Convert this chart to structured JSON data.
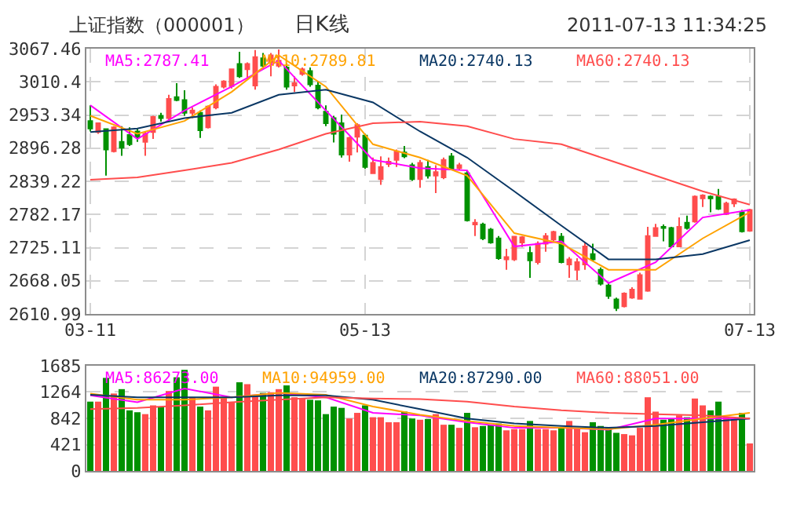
{
  "chart_data": [
    {
      "type": "candlestick",
      "title": "日K线",
      "annotations": [
        "上证指数（000001）",
        "2011-07-13 11:34:25"
      ],
      "categories": [
        "03-11",
        null,
        null,
        null,
        null,
        null,
        null,
        null,
        null,
        null,
        null,
        null,
        null,
        null,
        null,
        null,
        null,
        null,
        null,
        null,
        null,
        null,
        null,
        null,
        null,
        null,
        null,
        null,
        null,
        null,
        null,
        null,
        null,
        null,
        null,
        "05-13",
        null,
        null,
        null,
        null,
        null,
        null,
        null,
        null,
        null,
        null,
        null,
        null,
        null,
        null,
        null,
        null,
        null,
        null,
        null,
        null,
        null,
        null,
        null,
        null,
        null,
        null,
        null,
        null,
        null,
        null,
        null,
        null,
        null,
        null,
        null,
        null,
        null,
        null,
        null,
        null,
        null,
        null,
        null,
        null,
        null,
        null,
        null,
        null,
        "07-13"
      ],
      "ohlc": [
        [
          2943,
          2970,
          2925,
          2930
        ],
        [
          2924,
          2939,
          2921,
          2939
        ],
        [
          2929,
          2930,
          2849,
          2894
        ],
        [
          2891,
          2934,
          2889,
          2932
        ],
        [
          2907,
          2934,
          2883,
          2897
        ],
        [
          2919,
          2932,
          2900,
          2903
        ],
        [
          2925,
          2930,
          2907,
          2916
        ],
        [
          2907,
          2925,
          2883,
          2921
        ],
        [
          2924,
          2952,
          2912,
          2950
        ],
        [
          2952,
          2957,
          2942,
          2948
        ],
        [
          2948,
          2988,
          2943,
          2981
        ],
        [
          2984,
          3008,
          2977,
          2979
        ],
        [
          2979,
          2996,
          2952,
          2957
        ],
        [
          2957,
          2966,
          2948,
          2961
        ],
        [
          2957,
          2961,
          2914,
          2927
        ],
        [
          2932,
          2970,
          2930,
          2968
        ],
        [
          2966,
          3006,
          2963,
          3002
        ],
        [
          3002,
          3013,
          2999,
          3011
        ],
        [
          3003,
          3033,
          2999,
          3032
        ],
        [
          3041,
          3062,
          3017,
          3020
        ],
        [
          3032,
          3044,
          3015,
          3041
        ],
        [
          3004,
          3065,
          2997,
          3053
        ],
        [
          3051,
          3060,
          3033,
          3038
        ],
        [
          3044,
          3060,
          3020,
          3056
        ],
        [
          3038,
          3066,
          3035,
          3047
        ],
        [
          3035,
          3042,
          2997,
          3002
        ],
        [
          3004,
          3020,
          2993,
          3008
        ],
        [
          3024,
          3035,
          3021,
          3032
        ],
        [
          3029,
          3035,
          3002,
          3006
        ],
        [
          3004,
          3011,
          2963,
          2966
        ],
        [
          2959,
          2970,
          2934,
          2939
        ],
        [
          2948,
          2952,
          2906,
          2921
        ],
        [
          2939,
          2954,
          2880,
          2885
        ],
        [
          2885,
          2916,
          2873,
          2914
        ],
        [
          2916,
          2939,
          2889,
          2936
        ],
        [
          2918,
          2921,
          2861,
          2864
        ],
        [
          2853,
          2880,
          2852,
          2871
        ],
        [
          2843,
          2882,
          2833,
          2864
        ],
        [
          2869,
          2880,
          2864,
          2873
        ],
        [
          2876,
          2894,
          2864,
          2891
        ],
        [
          2889,
          2900,
          2879,
          2882
        ],
        [
          2867,
          2871,
          2840,
          2843
        ],
        [
          2843,
          2876,
          2828,
          2871
        ],
        [
          2864,
          2876,
          2844,
          2849
        ],
        [
          2849,
          2867,
          2819,
          2855
        ],
        [
          2846,
          2880,
          2843,
          2876
        ],
        [
          2882,
          2888,
          2859,
          2861
        ],
        [
          2862,
          2871,
          2858,
          2867
        ],
        [
          2853,
          2858,
          2770,
          2772
        ],
        [
          2765,
          2774,
          2745,
          2768
        ],
        [
          2765,
          2768,
          2738,
          2741
        ],
        [
          2756,
          2759,
          2732,
          2734
        ],
        [
          2741,
          2745,
          2704,
          2707
        ],
        [
          2705,
          2723,
          2687,
          2709
        ],
        [
          2705,
          2745,
          2702,
          2744
        ],
        [
          2734,
          2745,
          2726,
          2743
        ],
        [
          2716,
          2727,
          2673,
          2703
        ],
        [
          2700,
          2736,
          2696,
          2732
        ],
        [
          2732,
          2750,
          2718,
          2745
        ],
        [
          2739,
          2754,
          2736,
          2752
        ],
        [
          2744,
          2750,
          2698,
          2700
        ],
        [
          2696,
          2709,
          2673,
          2705
        ],
        [
          2687,
          2707,
          2669,
          2700
        ],
        [
          2696,
          2734,
          2687,
          2727
        ],
        [
          2714,
          2732,
          2702,
          2705
        ],
        [
          2687,
          2691,
          2660,
          2663
        ],
        [
          2660,
          2664,
          2637,
          2642
        ],
        [
          2636,
          2639,
          2616,
          2621
        ],
        [
          2624,
          2648,
          2622,
          2646
        ],
        [
          2639,
          2657,
          2637,
          2653
        ],
        [
          2637,
          2682,
          2636,
          2678
        ],
        [
          2651,
          2761,
          2649,
          2745
        ],
        [
          2745,
          2766,
          2744,
          2759
        ],
        [
          2761,
          2765,
          2736,
          2759
        ],
        [
          2759,
          2761,
          2726,
          2727
        ],
        [
          2727,
          2777,
          2726,
          2761
        ],
        [
          2768,
          2780,
          2756,
          2759
        ],
        [
          2770,
          2815,
          2768,
          2813
        ],
        [
          2810,
          2817,
          2795,
          2815
        ],
        [
          2813,
          2815,
          2786,
          2810
        ],
        [
          2813,
          2826,
          2790,
          2792
        ],
        [
          2783,
          2804,
          2781,
          2801
        ],
        [
          2801,
          2810,
          2795,
          2808
        ],
        [
          2786,
          2790,
          2751,
          2753
        ],
        [
          2754,
          2792,
          2753,
          2790
        ]
      ],
      "colors": [
        "#009100",
        "#ff4d4d",
        "#009100",
        "#ff4d4d",
        "#009100",
        "#009100",
        "#009100",
        "#ff4d4d",
        "#ff4d4d",
        "#009100",
        "#ff4d4d",
        "#009100",
        "#009100",
        "#ff4d4d",
        "#009100",
        "#ff4d4d",
        "#ff4d4d",
        "#ff4d4d",
        "#ff4d4d",
        "#009100",
        "#ff4d4d",
        "#ff4d4d",
        "#009100",
        "#ff4d4d",
        "#ff4d4d",
        "#009100",
        "#ff4d4d",
        "#ff4d4d",
        "#009100",
        "#009100",
        "#009100",
        "#009100",
        "#009100",
        "#ff4d4d",
        "#ff4d4d",
        "#009100",
        "#ff4d4d",
        "#ff4d4d",
        "#ff4d4d",
        "#ff4d4d",
        "#009100",
        "#009100",
        "#ff4d4d",
        "#009100",
        "#ff4d4d",
        "#ff4d4d",
        "#009100",
        "#ff4d4d",
        "#009100",
        "#ff4d4d",
        "#009100",
        "#009100",
        "#009100",
        "#ff4d4d",
        "#ff4d4d",
        "#ff4d4d",
        "#009100",
        "#ff4d4d",
        "#ff4d4d",
        "#ff4d4d",
        "#009100",
        "#ff4d4d",
        "#ff4d4d",
        "#ff4d4d",
        "#009100",
        "#009100",
        "#009100",
        "#009100",
        "#ff4d4d",
        "#ff4d4d",
        "#ff4d4d",
        "#ff4d4d",
        "#ff4d4d",
        "#009100",
        "#009100",
        "#ff4d4d",
        "#009100",
        "#ff4d4d",
        "#ff4d4d",
        "#009100",
        "#009100",
        "#ff4d4d",
        "#ff4d4d",
        "#009100",
        "#ff4d4d"
      ],
      "series": [
        {
          "type": "line",
          "name": "MA5:2787.41",
          "color": "#ff00ff",
          "values": [
            2970,
            null,
            null,
            null,
            null,
            null,
            2912,
            null,
            null,
            null,
            null,
            null,
            2961,
            null,
            null,
            null,
            null,
            null,
            3002,
            null,
            null,
            null,
            null,
            null,
            3047,
            null,
            null,
            null,
            null,
            null,
            2961,
            null,
            null,
            null,
            null,
            null,
            2876,
            null,
            null,
            null,
            null,
            null,
            2862,
            null,
            null,
            null,
            null,
            null,
            2858,
            null,
            null,
            null,
            null,
            null,
            2727,
            null,
            null,
            null,
            null,
            null,
            2736,
            null,
            null,
            null,
            null,
            null,
            2664,
            null,
            null,
            null,
            null,
            null,
            2700,
            null,
            null,
            null,
            null,
            null,
            2777,
            null,
            null,
            null,
            null,
            null,
            2790
          ]
        },
        {
          "type": "line",
          "name": "MA10:2789.81",
          "color": "#ffa200",
          "values": [
            2952,
            null,
            null,
            null,
            null,
            null,
            2921,
            null,
            null,
            null,
            null,
            null,
            2943,
            null,
            null,
            null,
            null,
            null,
            2993,
            null,
            null,
            null,
            null,
            null,
            3056,
            null,
            null,
            null,
            null,
            null,
            3002,
            null,
            null,
            null,
            null,
            null,
            2903,
            null,
            null,
            null,
            null,
            null,
            2880,
            null,
            null,
            null,
            null,
            null,
            2849,
            null,
            null,
            null,
            null,
            null,
            2750,
            null,
            null,
            null,
            null,
            null,
            2732,
            null,
            null,
            null,
            null,
            null,
            2687,
            null,
            null,
            null,
            null,
            null,
            2687,
            null,
            null,
            null,
            null,
            null,
            2741,
            null,
            null,
            null,
            null,
            null,
            2786
          ]
        },
        {
          "type": "line",
          "name": "MA20:2740.13",
          "color": "#0a3764",
          "values": [
            2924,
            null,
            null,
            null,
            null,
            null,
            2930,
            null,
            null,
            null,
            null,
            null,
            2948,
            null,
            null,
            null,
            null,
            null,
            2957,
            null,
            null,
            null,
            null,
            null,
            2988,
            null,
            null,
            null,
            null,
            null,
            2997,
            null,
            null,
            null,
            null,
            null,
            2975,
            null,
            null,
            null,
            null,
            null,
            2925,
            null,
            null,
            null,
            null,
            null,
            2880,
            null,
            null,
            null,
            null,
            null,
            2822,
            null,
            null,
            null,
            null,
            null,
            2763,
            null,
            null,
            null,
            null,
            null,
            2705,
            null,
            null,
            null,
            null,
            null,
            2705,
            null,
            null,
            null,
            null,
            null,
            2714,
            null,
            null,
            null,
            null,
            null,
            2738
          ]
        },
        {
          "type": "line",
          "name": "MA60:2740.13",
          "color": "#ff4d4d",
          "values": [
            2842,
            null,
            null,
            null,
            null,
            null,
            2846,
            null,
            null,
            null,
            null,
            null,
            2858,
            null,
            null,
            null,
            null,
            null,
            2871,
            null,
            null,
            null,
            null,
            null,
            2894,
            null,
            null,
            null,
            null,
            null,
            2921,
            null,
            null,
            null,
            null,
            null,
            2939,
            null,
            null,
            null,
            null,
            null,
            2942,
            null,
            null,
            null,
            null,
            null,
            2934,
            null,
            null,
            null,
            null,
            null,
            2912,
            null,
            null,
            null,
            null,
            null,
            2903,
            null,
            null,
            null,
            null,
            null,
            2876,
            null,
            null,
            null,
            null,
            null,
            2849,
            null,
            null,
            null,
            null,
            null,
            2822,
            null,
            null,
            null,
            null,
            null,
            2799
          ]
        }
      ],
      "ylim": [
        2610.99,
        3067.46
      ],
      "yticks": [
        2610.99,
        2668.05,
        2725.11,
        2782.17,
        2839.22,
        2896.28,
        2953.34,
        3010.4,
        3067.46
      ],
      "grid": true,
      "legend": "top"
    },
    {
      "type": "bar",
      "categories": [
        null,
        null,
        null,
        null,
        null,
        null,
        null,
        null,
        null,
        null,
        null,
        null,
        null,
        null,
        null,
        null,
        null,
        null,
        null,
        null,
        null,
        null,
        null,
        null,
        null,
        null,
        null,
        null,
        null,
        null,
        null,
        null,
        null,
        null,
        null,
        null,
        null,
        null,
        null,
        null,
        null,
        null,
        null,
        null,
        null,
        null,
        null,
        null,
        null,
        null,
        null,
        null,
        null,
        null,
        null,
        null,
        null,
        null,
        null,
        null,
        null,
        null,
        null,
        null,
        null,
        null,
        null,
        null,
        null,
        null,
        null,
        null,
        null,
        null,
        null,
        null,
        null,
        null,
        null,
        null,
        null,
        null,
        null,
        null,
        null
      ],
      "values": [
        1110,
        1110,
        1490,
        1240,
        1310,
        970,
        940,
        910,
        1050,
        1030,
        1280,
        1500,
        1620,
        1180,
        1030,
        970,
        1350,
        1180,
        1100,
        1420,
        1390,
        1220,
        1250,
        1260,
        1310,
        1370,
        1180,
        1160,
        1140,
        1130,
        910,
        1030,
        1010,
        840,
        930,
        1050,
        860,
        860,
        780,
        780,
        950,
        840,
        820,
        830,
        910,
        740,
        740,
        690,
        930,
        700,
        720,
        740,
        760,
        650,
        670,
        670,
        800,
        670,
        670,
        650,
        690,
        800,
        690,
        620,
        780,
        720,
        690,
        610,
        590,
        570,
        690,
        1180,
        950,
        820,
        840,
        890,
        860,
        1160,
        1050,
        970,
        1110,
        860,
        840,
        930,
        440
      ],
      "colors": [
        "#009100",
        "#ff4d4d",
        "#009100",
        "#ff4d4d",
        "#009100",
        "#009100",
        "#009100",
        "#ff4d4d",
        "#ff4d4d",
        "#009100",
        "#ff4d4d",
        "#009100",
        "#009100",
        "#ff4d4d",
        "#009100",
        "#ff4d4d",
        "#ff4d4d",
        "#ff4d4d",
        "#ff4d4d",
        "#009100",
        "#ff4d4d",
        "#ff4d4d",
        "#009100",
        "#ff4d4d",
        "#ff4d4d",
        "#009100",
        "#ff4d4d",
        "#ff4d4d",
        "#009100",
        "#009100",
        "#009100",
        "#009100",
        "#009100",
        "#ff4d4d",
        "#ff4d4d",
        "#009100",
        "#ff4d4d",
        "#ff4d4d",
        "#ff4d4d",
        "#ff4d4d",
        "#009100",
        "#009100",
        "#ff4d4d",
        "#009100",
        "#ff4d4d",
        "#ff4d4d",
        "#009100",
        "#ff4d4d",
        "#009100",
        "#ff4d4d",
        "#009100",
        "#009100",
        "#009100",
        "#ff4d4d",
        "#ff4d4d",
        "#ff4d4d",
        "#009100",
        "#ff4d4d",
        "#ff4d4d",
        "#ff4d4d",
        "#009100",
        "#ff4d4d",
        "#ff4d4d",
        "#ff4d4d",
        "#009100",
        "#009100",
        "#009100",
        "#009100",
        "#ff4d4d",
        "#ff4d4d",
        "#ff4d4d",
        "#ff4d4d",
        "#ff4d4d",
        "#009100",
        "#009100",
        "#ff4d4d",
        "#009100",
        "#ff4d4d",
        "#ff4d4d",
        "#009100",
        "#009100",
        "#ff4d4d",
        "#ff4d4d",
        "#009100",
        "#ff4d4d"
      ],
      "series": [
        {
          "type": "line",
          "name": "MA5:86273.00",
          "color": "#ff00ff",
          "values": [
            1210,
            null,
            null,
            null,
            null,
            null,
            1100,
            null,
            null,
            null,
            null,
            null,
            1320,
            null,
            null,
            null,
            null,
            null,
            1180,
            null,
            null,
            null,
            null,
            null,
            1250,
            null,
            null,
            null,
            null,
            null,
            1180,
            null,
            null,
            null,
            null,
            null,
            930,
            null,
            null,
            null,
            null,
            null,
            890,
            null,
            null,
            null,
            null,
            null,
            780,
            null,
            null,
            null,
            null,
            null,
            690,
            null,
            null,
            null,
            null,
            null,
            690,
            null,
            null,
            null,
            null,
            null,
            660,
            null,
            null,
            null,
            null,
            null,
            840,
            null,
            null,
            null,
            null,
            null,
            840,
            null,
            null,
            null,
            null,
            null,
            840
          ]
        },
        {
          "type": "line",
          "name": "MA10:94959.00",
          "color": "#ffa200",
          "values": [
            1240,
            null,
            null,
            null,
            null,
            null,
            1140,
            null,
            null,
            null,
            null,
            null,
            1140,
            null,
            null,
            null,
            null,
            null,
            1180,
            null,
            null,
            null,
            null,
            null,
            1250,
            null,
            null,
            null,
            null,
            null,
            1220,
            null,
            null,
            null,
            null,
            null,
            1030,
            null,
            null,
            null,
            null,
            null,
            900,
            null,
            null,
            null,
            null,
            null,
            800,
            null,
            null,
            null,
            null,
            null,
            720,
            null,
            null,
            null,
            null,
            null,
            690,
            null,
            null,
            null,
            null,
            null,
            670,
            null,
            null,
            null,
            null,
            null,
            740,
            null,
            null,
            null,
            null,
            null,
            840,
            null,
            null,
            null,
            null,
            null,
            930
          ]
        },
        {
          "type": "line",
          "name": "MA20:87290.00",
          "color": "#0a3764",
          "values": [
            1220,
            null,
            null,
            null,
            null,
            null,
            1180,
            null,
            null,
            null,
            null,
            null,
            1180,
            null,
            null,
            null,
            null,
            null,
            1180,
            null,
            null,
            null,
            null,
            null,
            1210,
            null,
            null,
            null,
            null,
            null,
            1210,
            null,
            null,
            null,
            null,
            null,
            1140,
            null,
            null,
            null,
            null,
            null,
            990,
            null,
            null,
            null,
            null,
            null,
            840,
            null,
            null,
            null,
            null,
            null,
            760,
            null,
            null,
            null,
            null,
            null,
            720,
            null,
            null,
            null,
            null,
            null,
            690,
            null,
            null,
            null,
            null,
            null,
            720,
            null,
            null,
            null,
            null,
            null,
            780,
            null,
            null,
            null,
            null,
            null,
            840
          ]
        },
        {
          "type": "line",
          "name": "MA60:88051.00",
          "color": "#ff4d4d",
          "values": [
            990,
            null,
            null,
            null,
            null,
            null,
            1010,
            null,
            null,
            null,
            null,
            null,
            1050,
            null,
            null,
            null,
            null,
            null,
            1100,
            null,
            null,
            null,
            null,
            null,
            1140,
            null,
            null,
            null,
            null,
            null,
            1180,
            null,
            null,
            null,
            null,
            null,
            1160,
            null,
            null,
            null,
            null,
            null,
            1150,
            null,
            null,
            null,
            null,
            null,
            1110,
            null,
            null,
            null,
            null,
            null,
            1030,
            null,
            null,
            null,
            null,
            null,
            970,
            null,
            null,
            null,
            null,
            null,
            930,
            null,
            null,
            null,
            null,
            null,
            910,
            null,
            null,
            null,
            null,
            null,
            890,
            null,
            null,
            null,
            null,
            null,
            840
          ]
        }
      ],
      "ylim": [
        0,
        1685
      ],
      "yticks": [
        0,
        421,
        842,
        1264,
        1685
      ],
      "grid": true,
      "legend": "top",
      "tick_labels": "y"
    }
  ]
}
